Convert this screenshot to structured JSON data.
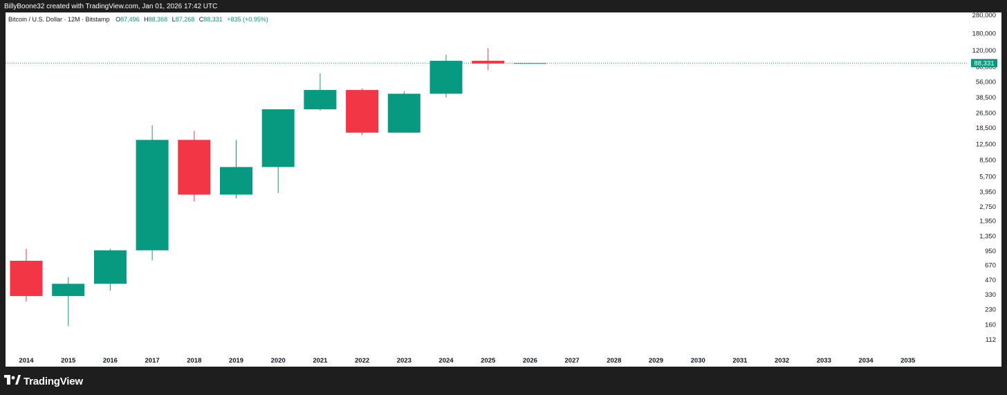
{
  "header": {
    "caption": "BillyBoone32 created with TradingView.com, Jan 01, 2026 17:42 UTC"
  },
  "legend": {
    "title": "Bitcoin / U.S. Dollar · 12M · Bitstamp",
    "open_key": "O",
    "open_val": "87,496",
    "high_key": "H",
    "high_val": "88,368",
    "low_key": "L",
    "low_val": "87,268",
    "close_key": "C",
    "close_val": "88,331",
    "change": "+835 (+0.95%)"
  },
  "footer": {
    "brand": "TradingView",
    "logo_icon": "tradingview-logo-icon"
  },
  "colors": {
    "up": "#089981",
    "down": "#f23645",
    "grid_text": "#131722",
    "price_label_bg": "#089981"
  },
  "chart_data": {
    "type": "candlestick",
    "y_scale": "log",
    "ylim": [
      80,
      300000
    ],
    "y_ticks": [
      "280,000",
      "180,000",
      "120,000",
      "80,000",
      "56,000",
      "38,500",
      "26,500",
      "18,500",
      "12,500",
      "8,500",
      "5,700",
      "3,950",
      "2,750",
      "1,950",
      "1,350",
      "950",
      "670",
      "470",
      "330",
      "230",
      "160",
      "112"
    ],
    "x_ticks": [
      "2014",
      "2015",
      "2016",
      "2017",
      "2018",
      "2019",
      "2020",
      "2021",
      "2022",
      "2023",
      "2024",
      "2025",
      "2026",
      "2027",
      "2028",
      "2029",
      "2030",
      "2031",
      "2032",
      "2033",
      "2034",
      "2035"
    ],
    "last_price": 88331,
    "last_price_label": "88,331",
    "candles": [
      {
        "year": "2014",
        "open": 750,
        "high": 1000,
        "low": 280,
        "close": 320
      },
      {
        "year": "2015",
        "open": 320,
        "high": 505,
        "low": 155,
        "close": 430
      },
      {
        "year": "2016",
        "open": 430,
        "high": 1000,
        "low": 365,
        "close": 965
      },
      {
        "year": "2017",
        "open": 965,
        "high": 19700,
        "low": 755,
        "close": 13850
      },
      {
        "year": "2018",
        "open": 13850,
        "high": 17200,
        "low": 3150,
        "close": 3700
      },
      {
        "year": "2019",
        "open": 3700,
        "high": 13800,
        "low": 3400,
        "close": 7200
      },
      {
        "year": "2020",
        "open": 7200,
        "high": 29000,
        "low": 3850,
        "close": 29000
      },
      {
        "year": "2021",
        "open": 29000,
        "high": 69000,
        "low": 28000,
        "close": 46200
      },
      {
        "year": "2022",
        "open": 46200,
        "high": 48000,
        "low": 15500,
        "close": 16500
      },
      {
        "year": "2023",
        "open": 16500,
        "high": 44700,
        "low": 16500,
        "close": 42200
      },
      {
        "year": "2024",
        "open": 42200,
        "high": 108000,
        "low": 38500,
        "close": 93500
      },
      {
        "year": "2025",
        "open": 93500,
        "high": 126000,
        "low": 75000,
        "close": 87496
      },
      {
        "year": "2026",
        "open": 87496,
        "high": 88368,
        "low": 87268,
        "close": 88331
      }
    ]
  }
}
